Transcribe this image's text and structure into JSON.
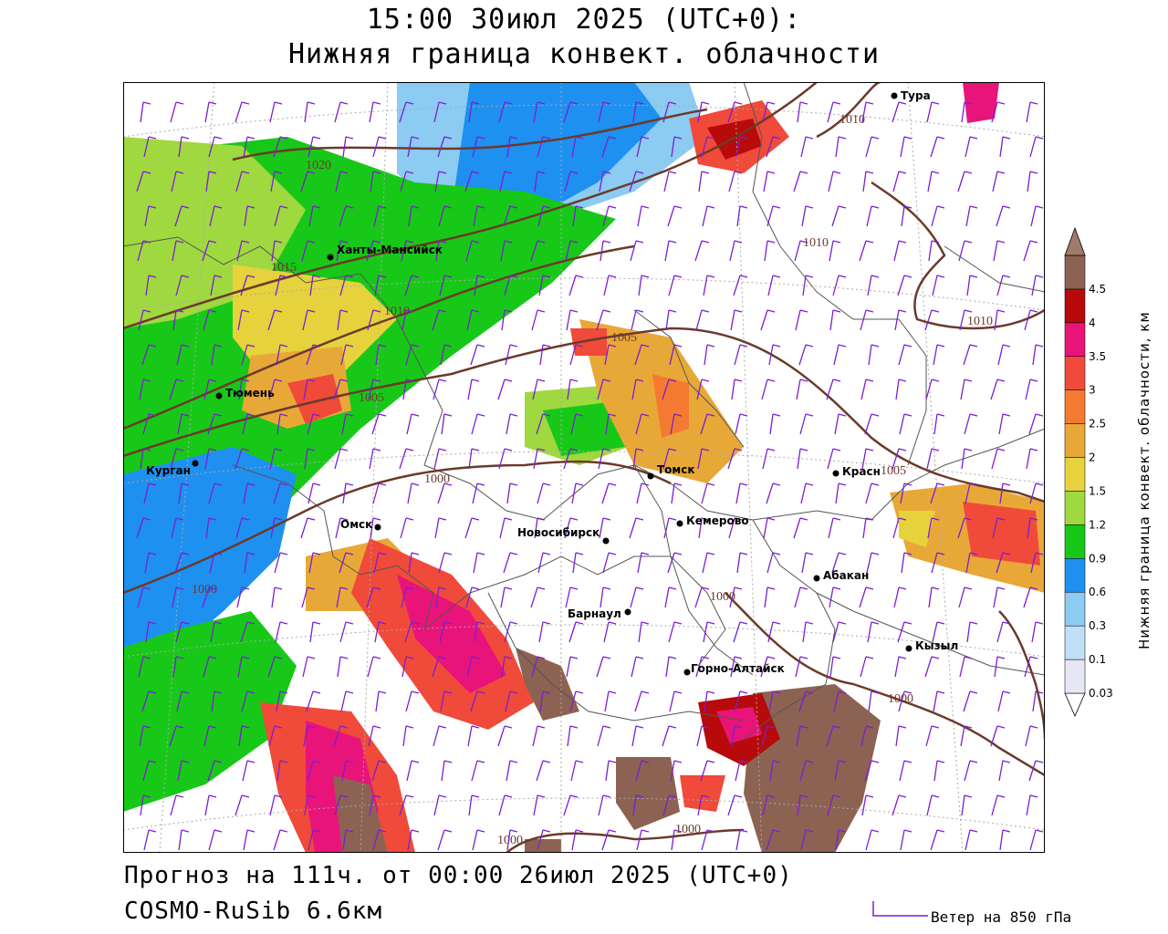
{
  "header": {
    "title_line1": "15:00 30июл 2025 (UTC+0):",
    "title_line2": "Нижняя граница конвект. облачности"
  },
  "footer": {
    "forecast": "Прогноз на 111ч. от 00:00 26июл 2025 (UTC+0)",
    "model": "COSMO-RuSib 6.6км"
  },
  "wind_legend": {
    "label": "Ветер на 850 гПа",
    "color": "#7b1fd1"
  },
  "colorbar": {
    "label": "Нижняя граница конвект. облачности, км",
    "levels": [
      "0.03",
      "0.1",
      "0.3",
      "0.6",
      "0.9",
      "1.2",
      "1.5",
      "2",
      "2.5",
      "3",
      "3.5",
      "4",
      "4.5"
    ],
    "colors": [
      "#e6e6f5",
      "#bfe0f7",
      "#8ccbf2",
      "#1e90f0",
      "#18c818",
      "#a0d840",
      "#e6d23c",
      "#e8a838",
      "#f47a32",
      "#f04a3a",
      "#e8147a",
      "#b80a0a",
      "#8c6252",
      "#a07a6a"
    ]
  },
  "cities": [
    {
      "name": "Тура",
      "label": "Тура"
    },
    {
      "name": "Ханты-Мансийск",
      "label": "Ханты-Мансийск"
    },
    {
      "name": "Тюмень",
      "label": "Тюмень"
    },
    {
      "name": "Курган",
      "label": "Курган"
    },
    {
      "name": "Омск",
      "label": "Омск"
    },
    {
      "name": "Новосибирск",
      "label": "Новосибирск"
    },
    {
      "name": "Томск",
      "label": "Томск"
    },
    {
      "name": "Кемерово",
      "label": "Кемерово"
    },
    {
      "name": "Красноярск",
      "label": "Красн"
    },
    {
      "name": "Абакан",
      "label": "Абакан"
    },
    {
      "name": "Барнаул",
      "label": "Барнаул"
    },
    {
      "name": "Кызыл",
      "label": "Кызыл"
    },
    {
      "name": "Горно-Алтайск",
      "label": "Горно-Алтайск"
    }
  ],
  "isobar_labels": [
    "1020",
    "1015",
    "1010",
    "1010",
    "1010",
    "1010",
    "1005",
    "1005",
    "1005",
    "1000",
    "1000",
    "1000",
    "1000",
    "1000",
    "1000"
  ],
  "brand_colors": {
    "isobar": "#6b3a2a",
    "border": "#505050",
    "grid": "#aaaaaa",
    "city": "#000000"
  }
}
